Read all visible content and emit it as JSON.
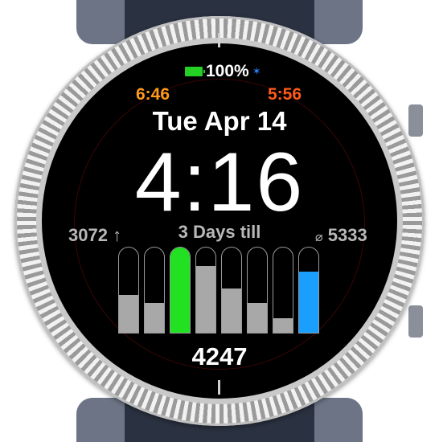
{
  "status": {
    "battery_text": "100%",
    "bluetooth_glyph": "✶"
  },
  "sun": {
    "sunrise": "6:46",
    "sunset": "5:56"
  },
  "date": "Tue Apr 14",
  "time": "4:16",
  "left_stat": {
    "value": "3072",
    "arrow": "↑"
  },
  "right_stat": {
    "symbol": "⌀",
    "value": "5333"
  },
  "countdown": "3 Days till",
  "steps": "4247",
  "history_bars": [
    {
      "label": "day-1",
      "fraction": 0.44,
      "color": "#a8a8a8"
    },
    {
      "label": "day-2",
      "fraction": 0.35,
      "color": "#a8a8a8"
    },
    {
      "label": "day-3",
      "fraction": 1.0,
      "color": "#22e022"
    },
    {
      "label": "day-4",
      "fraction": 0.78,
      "color": "#a8a8a8"
    },
    {
      "label": "day-5",
      "fraction": 0.52,
      "color": "#a8a8a8"
    },
    {
      "label": "day-6",
      "fraction": 0.35,
      "color": "#a8a8a8"
    },
    {
      "label": "day-7",
      "fraction": 0.17,
      "color": "#a8a8a8"
    },
    {
      "label": "today",
      "fraction": 0.72,
      "color": "#1a9fff"
    }
  ]
}
